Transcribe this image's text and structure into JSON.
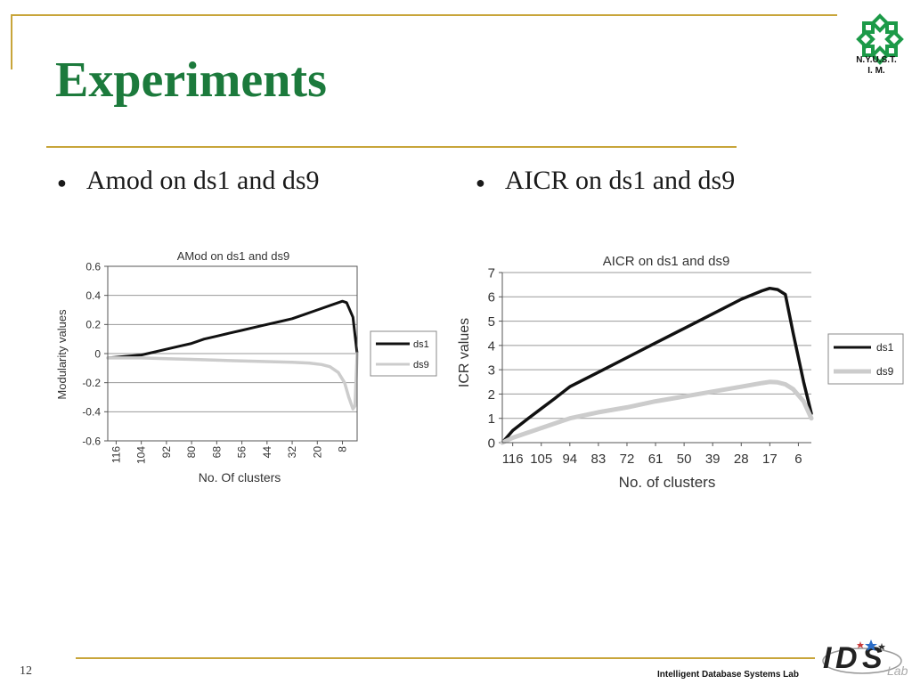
{
  "slide": {
    "title": "Experiments",
    "bullets": [
      "Amod on ds1 and ds9",
      "AICR on ds1 and ds9"
    ],
    "logo_text_line1": "N.Y.U.S.T.",
    "logo_text_line2": "I. M.",
    "footer_text": "Intelligent Database Systems Lab",
    "page_number": "12",
    "accent_color": "#1c7a3c",
    "rule_color": "#c8a53a"
  },
  "chart_data": [
    {
      "type": "line",
      "title": "AMod on ds1 and ds9",
      "xlabel": "No. Of clusters",
      "ylabel": "Modularity values",
      "x_ticks": [
        "116",
        "104",
        "92",
        "80",
        "68",
        "56",
        "44",
        "32",
        "20",
        "8"
      ],
      "tick_label_rotation": "vertical",
      "x_range": [
        120,
        1
      ],
      "x_reversed": true,
      "ylim": [
        -0.6,
        0.6
      ],
      "y_ticks": [
        "0.6",
        "0.4",
        "0.2",
        "0",
        "-0.2",
        "-0.4",
        "-0.6"
      ],
      "grid": true,
      "legend": "right",
      "series": [
        {
          "name": "ds1",
          "color": "#111111",
          "x": [
            120,
            112,
            104,
            98,
            92,
            86,
            80,
            74,
            68,
            62,
            56,
            50,
            44,
            38,
            32,
            26,
            20,
            14,
            10,
            8,
            6,
            3,
            1
          ],
          "y": [
            -0.03,
            -0.02,
            -0.01,
            0.01,
            0.03,
            0.05,
            0.07,
            0.1,
            0.12,
            0.14,
            0.16,
            0.18,
            0.2,
            0.22,
            0.24,
            0.27,
            0.3,
            0.33,
            0.35,
            0.36,
            0.35,
            0.25,
            0.0
          ]
        },
        {
          "name": "ds9",
          "color": "#cccccc",
          "x": [
            120,
            104,
            92,
            80,
            68,
            56,
            44,
            32,
            24,
            18,
            14,
            10,
            7,
            5,
            3,
            2,
            1
          ],
          "y": [
            -0.03,
            -0.03,
            -0.035,
            -0.04,
            -0.045,
            -0.05,
            -0.055,
            -0.06,
            -0.065,
            -0.075,
            -0.09,
            -0.13,
            -0.2,
            -0.3,
            -0.38,
            -0.36,
            0.0
          ]
        }
      ]
    },
    {
      "type": "line",
      "title": "AICR on ds1 and ds9",
      "xlabel": "No. of clusters",
      "ylabel": "ICR values",
      "x_ticks": [
        "116",
        "105",
        "94",
        "83",
        "72",
        "61",
        "50",
        "39",
        "28",
        "17",
        "6"
      ],
      "x_range": [
        120,
        1
      ],
      "x_reversed": true,
      "ylim": [
        0,
        7
      ],
      "y_ticks": [
        "7",
        "6",
        "5",
        "4",
        "3",
        "2",
        "1",
        "0"
      ],
      "grid": true,
      "legend": "right",
      "series": [
        {
          "name": "ds1",
          "color": "#111111",
          "x": [
            120,
            116,
            110,
            105,
            100,
            94,
            83,
            72,
            61,
            50,
            39,
            28,
            20,
            17,
            14,
            11,
            8,
            4,
            1
          ],
          "y": [
            0.0,
            0.5,
            1.0,
            1.4,
            1.8,
            2.3,
            2.9,
            3.5,
            4.1,
            4.7,
            5.3,
            5.9,
            6.25,
            6.35,
            6.3,
            6.1,
            4.5,
            2.5,
            1.2
          ]
        },
        {
          "name": "ds9",
          "color": "#cccccc",
          "x": [
            120,
            116,
            105,
            94,
            83,
            72,
            61,
            50,
            39,
            28,
            20,
            17,
            14,
            11,
            8,
            4,
            1
          ],
          "y": [
            0.0,
            0.2,
            0.6,
            1.0,
            1.25,
            1.45,
            1.7,
            1.9,
            2.1,
            2.3,
            2.45,
            2.5,
            2.48,
            2.4,
            2.2,
            1.7,
            1.0
          ]
        }
      ]
    }
  ]
}
